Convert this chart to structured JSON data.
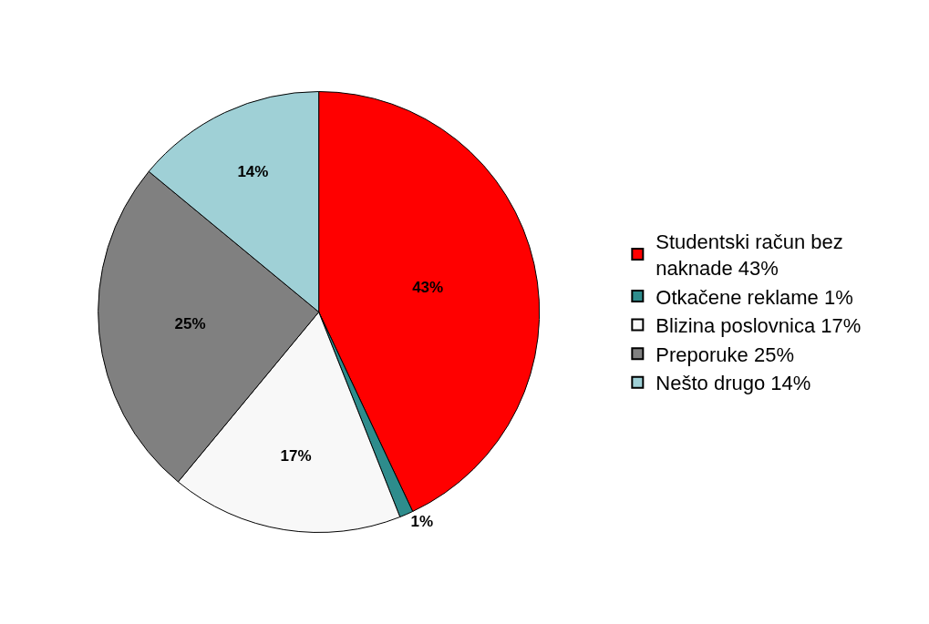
{
  "chart_data": {
    "type": "pie",
    "categories": [
      "Studentski račun bez naknade 43%",
      "Otkačene reklame 1%",
      "Blizina poslovnica 17%",
      "Preporuke 25%",
      "Nešto drugo 14%"
    ],
    "values": [
      43,
      1,
      17,
      25,
      14
    ],
    "colors": [
      "#ff0000",
      "#2e8c8c",
      "#f8f8f8",
      "#808080",
      "#9fd0d6"
    ],
    "value_labels": [
      "43%",
      "1%",
      "17%",
      "25%",
      "14%"
    ],
    "legend": "right"
  }
}
